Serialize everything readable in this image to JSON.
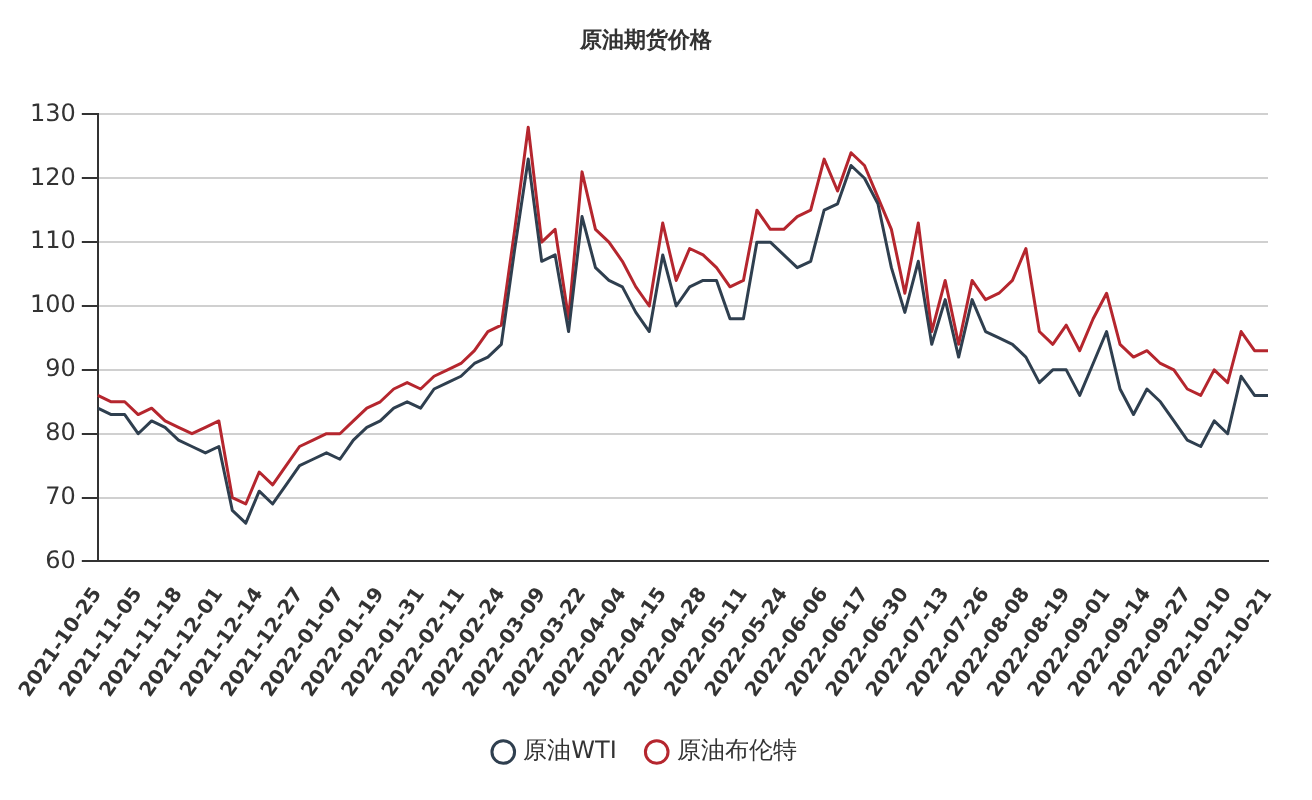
{
  "chart_data": {
    "type": "line",
    "title": "原油期货价格",
    "categories": [
      "2021-10-25",
      null,
      null,
      "2021-11-05",
      null,
      null,
      "2021-11-18",
      null,
      null,
      "2021-12-01",
      null,
      null,
      "2021-12-14",
      null,
      null,
      "2021-12-27",
      null,
      null,
      "2022-01-07",
      null,
      null,
      "2022-01-19",
      null,
      null,
      "2022-01-31",
      null,
      null,
      "2022-02-11",
      null,
      null,
      "2022-02-24",
      null,
      null,
      "2022-03-09",
      null,
      null,
      "2022-03-22",
      null,
      null,
      "2022-04-04",
      null,
      null,
      "2022-04-15",
      null,
      null,
      "2022-04-28",
      null,
      null,
      "2022-05-11",
      null,
      null,
      "2022-05-24",
      null,
      null,
      "2022-06-06",
      null,
      null,
      "2022-06-17",
      null,
      null,
      "2022-06-30",
      null,
      null,
      "2022-07-13",
      null,
      null,
      "2022-07-26",
      null,
      null,
      "2022-08-08",
      null,
      null,
      "2022-08-19",
      null,
      null,
      "2022-09-01",
      null,
      null,
      "2022-09-14",
      null,
      null,
      "2022-09-27",
      null,
      null,
      "2022-10-10",
      null,
      null,
      "2022-10-21"
    ],
    "series": [
      {
        "name": "原油WTI",
        "color": "#2f3f4f",
        "values": [
          84,
          83,
          83,
          80,
          82,
          81,
          79,
          78,
          77,
          78,
          68,
          66,
          71,
          69,
          72,
          75,
          76,
          77,
          76,
          79,
          81,
          82,
          84,
          85,
          84,
          87,
          88,
          89,
          91,
          92,
          94,
          109,
          123,
          107,
          108,
          96,
          114,
          106,
          104,
          103,
          99,
          96,
          108,
          100,
          103,
          104,
          104,
          98,
          98,
          110,
          110,
          108,
          106,
          107,
          115,
          116,
          122,
          120,
          116,
          106,
          99,
          107,
          94,
          101,
          92,
          101,
          96,
          95,
          94,
          92,
          88,
          90,
          90,
          86,
          91,
          96,
          87,
          83,
          87,
          85,
          82,
          79,
          78,
          82,
          80,
          89,
          86,
          86
        ]
      },
      {
        "name": "原油布伦特",
        "color": "#b5262e",
        "values": [
          86,
          85,
          85,
          83,
          84,
          82,
          81,
          80,
          81,
          82,
          70,
          69,
          74,
          72,
          75,
          78,
          79,
          80,
          80,
          82,
          84,
          85,
          87,
          88,
          87,
          89,
          90,
          91,
          93,
          96,
          97,
          112,
          128,
          110,
          112,
          98,
          121,
          112,
          110,
          107,
          103,
          100,
          113,
          104,
          109,
          108,
          106,
          103,
          104,
          115,
          112,
          112,
          114,
          115,
          123,
          118,
          124,
          122,
          117,
          112,
          102,
          113,
          96,
          104,
          94,
          104,
          101,
          102,
          104,
          109,
          96,
          94,
          97,
          93,
          98,
          102,
          94,
          92,
          93,
          91,
          90,
          87,
          86,
          90,
          88,
          96,
          93,
          93
        ]
      }
    ],
    "ylim": [
      60,
      130
    ],
    "yticks": [
      60,
      70,
      80,
      90,
      100,
      110,
      120,
      130
    ],
    "grid": "y",
    "legend": "bottom",
    "marker": "none",
    "line_style": "solid"
  }
}
